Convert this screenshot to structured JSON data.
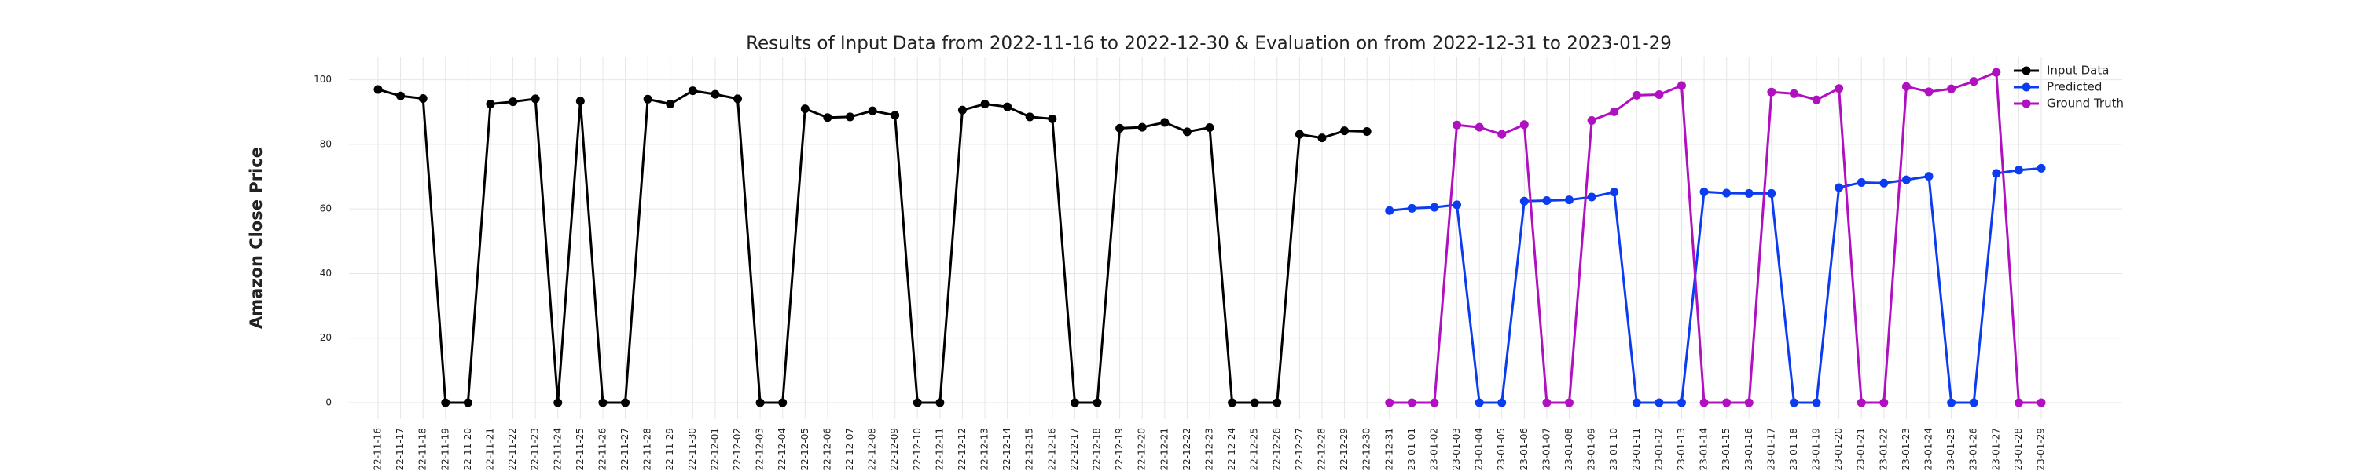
{
  "chart_data": {
    "type": "line",
    "title": "Results of Input Data from 2022-11-16 to 2022-12-30 & Evaluation on from 2022-12-31 to 2023-01-29",
    "y_label": "Amazon Close Price",
    "categories": [
      "2022-11-16",
      "2022-11-17",
      "2022-11-18",
      "2022-11-19",
      "2022-11-20",
      "2022-11-21",
      "2022-11-22",
      "2022-11-23",
      "2022-11-24",
      "2022-11-25",
      "2022-11-26",
      "2022-11-27",
      "2022-11-28",
      "2022-11-29",
      "2022-11-30",
      "2022-12-01",
      "2022-12-02",
      "2022-12-03",
      "2022-12-04",
      "2022-12-05",
      "2022-12-06",
      "2022-12-07",
      "2022-12-08",
      "2022-12-09",
      "2022-12-10",
      "2022-12-11",
      "2022-12-12",
      "2022-12-13",
      "2022-12-14",
      "2022-12-15",
      "2022-12-16",
      "2022-12-17",
      "2022-12-18",
      "2022-12-19",
      "2022-12-20",
      "2022-12-21",
      "2022-12-22",
      "2022-12-23",
      "2022-12-24",
      "2022-12-25",
      "2022-12-26",
      "2022-12-27",
      "2022-12-28",
      "2022-12-29",
      "2022-12-30",
      "2022-12-31",
      "2023-01-01",
      "2023-01-02",
      "2023-01-03",
      "2023-01-04",
      "2023-01-05",
      "2023-01-06",
      "2023-01-07",
      "2023-01-08",
      "2023-01-09",
      "2023-01-10",
      "2023-01-11",
      "2023-01-12",
      "2023-01-13",
      "2023-01-14",
      "2023-01-15",
      "2023-01-16",
      "2023-01-17",
      "2023-01-18",
      "2023-01-19",
      "2023-01-20",
      "2023-01-21",
      "2023-01-22",
      "2023-01-23",
      "2023-01-24",
      "2023-01-25",
      "2023-01-26",
      "2023-01-27",
      "2023-01-28",
      "2023-01-29"
    ],
    "series": [
      {
        "name": "Input Data",
        "color": "#000000",
        "values": [
          97,
          95,
          94.2,
          0,
          0,
          92.5,
          93.2,
          94.1,
          0,
          93.4,
          0,
          0,
          94,
          92.5,
          96.6,
          95.5,
          94.1,
          0,
          0,
          91,
          88.3,
          88.5,
          90.4,
          89,
          0,
          0,
          90.6,
          92.5,
          91.6,
          88.5,
          87.9,
          0,
          0,
          85,
          85.3,
          86.8,
          83.9,
          85.2,
          0,
          0,
          0,
          83.1,
          82,
          84.2,
          84,
          null,
          null,
          null,
          null,
          null,
          null,
          null,
          null,
          null,
          null,
          null,
          null,
          null,
          null,
          null,
          null,
          null,
          null,
          null,
          null,
          null,
          null,
          null,
          null,
          null,
          null,
          null,
          null,
          null,
          null
        ]
      },
      {
        "name": "Predicted",
        "color": "#0b3cf0",
        "values": [
          null,
          null,
          null,
          null,
          null,
          null,
          null,
          null,
          null,
          null,
          null,
          null,
          null,
          null,
          null,
          null,
          null,
          null,
          null,
          null,
          null,
          null,
          null,
          null,
          null,
          null,
          null,
          null,
          null,
          null,
          null,
          null,
          null,
          null,
          null,
          null,
          null,
          null,
          null,
          null,
          null,
          null,
          null,
          null,
          null,
          59.5,
          60.2,
          60.5,
          61.3,
          0,
          0,
          62.4,
          62.6,
          62.8,
          63.7,
          65.2,
          0,
          0,
          0,
          65.3,
          64.9,
          64.8,
          64.8,
          0,
          0,
          66.6,
          68.2,
          68,
          69,
          70.1,
          0,
          0,
          71,
          72,
          72.6
        ]
      },
      {
        "name": "Ground Truth",
        "color": "#b010c0",
        "values": [
          null,
          null,
          null,
          null,
          null,
          null,
          null,
          null,
          null,
          null,
          null,
          null,
          null,
          null,
          null,
          null,
          null,
          null,
          null,
          null,
          null,
          null,
          null,
          null,
          null,
          null,
          null,
          null,
          null,
          null,
          null,
          null,
          null,
          null,
          null,
          null,
          null,
          null,
          null,
          null,
          null,
          null,
          null,
          null,
          null,
          0,
          0,
          0,
          86,
          85.3,
          83.1,
          86.1,
          0,
          0,
          87.4,
          90.1,
          95.2,
          95.4,
          98.2,
          0,
          0,
          0,
          96.2,
          95.7,
          93.8,
          97.3,
          0,
          0,
          97.9,
          96.3,
          97.2,
          99.5,
          102.3,
          0,
          0
        ]
      }
    ],
    "ylim": [
      -5.1,
      107.2
    ],
    "yticks": [
      0,
      20,
      40,
      60,
      80,
      100
    ],
    "grid": true,
    "legend": "upper right"
  }
}
